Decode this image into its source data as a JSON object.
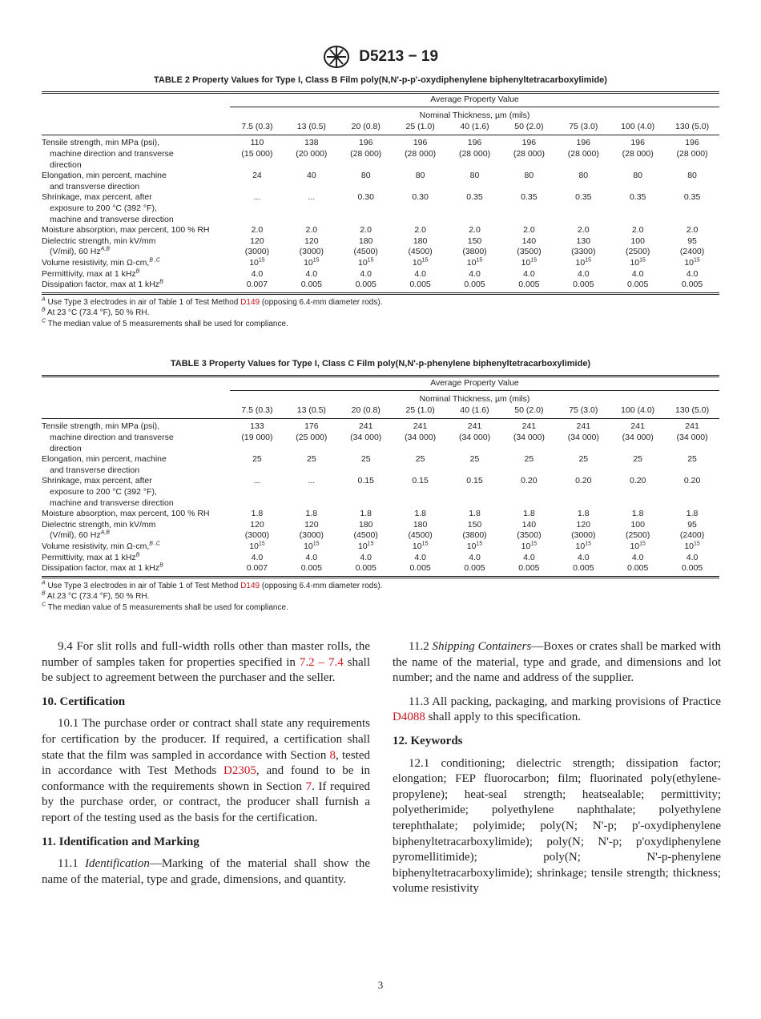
{
  "header": {
    "logo": "ASTM",
    "designation": "D5213 − 19"
  },
  "tables": [
    {
      "caption": "TABLE 2 Property Values for Type I, Class B Film poly(N,N'-p-p'-oxydiphenylene biphenyltetracarboxylimide)",
      "group_header": "Average Property Value",
      "sub_header": "Nominal Thickness, µm (mils)",
      "columns": [
        "7.5 (0.3)",
        "13 (0.5)",
        "20 (0.8)",
        "25 (1.0)",
        "40 (1.6)",
        "50 (2.0)",
        "75 (3.0)",
        "100 (4.0)",
        "130 (5.0)"
      ],
      "rows": [
        {
          "label": [
            {
              "t": "Tensile strength, min MPa (psi),"
            },
            {
              "t": "machine direction and transverse"
            },
            {
              "t": "direction"
            }
          ],
          "cells": [
            [
              "110",
              "(15 000)"
            ],
            [
              "138",
              "(20 000)"
            ],
            [
              "196",
              "(28 000)"
            ],
            [
              "196",
              "(28 000)"
            ],
            [
              "196",
              "(28 000)"
            ],
            [
              "196",
              "(28 000)"
            ],
            [
              "196",
              "(28 000)"
            ],
            [
              "196",
              "(28 000)"
            ],
            [
              "196",
              "(28 000)"
            ]
          ]
        },
        {
          "label": [
            {
              "t": "Elongation, min percent, machine"
            },
            {
              "t": "and transverse direction"
            }
          ],
          "cells": [
            [
              "24"
            ],
            [
              "40"
            ],
            [
              "80"
            ],
            [
              "80"
            ],
            [
              "80"
            ],
            [
              "80"
            ],
            [
              "80"
            ],
            [
              "80"
            ],
            [
              "80"
            ]
          ]
        },
        {
          "label": [
            {
              "t": "Shrinkage, max percent, after"
            },
            {
              "t": "exposure to 200 °C (392 °F),"
            },
            {
              "t": "machine and transverse direction"
            }
          ],
          "cells": [
            [
              "..."
            ],
            [
              "..."
            ],
            [
              "0.30"
            ],
            [
              "0.30"
            ],
            [
              "0.35"
            ],
            [
              "0.35"
            ],
            [
              "0.35"
            ],
            [
              "0.35"
            ],
            [
              "0.35"
            ]
          ]
        },
        {
          "label": [
            {
              "t": "Moisture absorption, max percent, 100 % RH"
            }
          ],
          "cells": [
            [
              "2.0"
            ],
            [
              "2.0"
            ],
            [
              "2.0"
            ],
            [
              "2.0"
            ],
            [
              "2.0"
            ],
            [
              "2.0"
            ],
            [
              "2.0"
            ],
            [
              "2.0"
            ],
            [
              "2.0"
            ]
          ]
        },
        {
          "label": [
            {
              "t": "Dielectric strength, min kV/mm"
            },
            {
              "t": "(V/mil), 60 Hz",
              "sup": "A,B"
            }
          ],
          "cells": [
            [
              "120",
              "(3000)"
            ],
            [
              "120",
              "(3000)"
            ],
            [
              "180",
              "(4500)"
            ],
            [
              "180",
              "(4500)"
            ],
            [
              "150",
              "(3800)"
            ],
            [
              "140",
              "(3500)"
            ],
            [
              "130",
              "(3300)"
            ],
            [
              "100",
              "(2500)"
            ],
            [
              "95",
              "(2400)"
            ]
          ]
        },
        {
          "label": [
            {
              "t": "Volume resistivity, min Ω-cm,",
              "sup": "B ,C"
            }
          ],
          "cells": [
            [
              "10^15"
            ],
            [
              "10^15"
            ],
            [
              "10^15"
            ],
            [
              "10^15"
            ],
            [
              "10^15"
            ],
            [
              "10^15"
            ],
            [
              "10^15"
            ],
            [
              "10^15"
            ],
            [
              "10^15"
            ]
          ]
        },
        {
          "label": [
            {
              "t": "Permittivity, max at 1 kHz",
              "sup": "B"
            }
          ],
          "cells": [
            [
              "4.0"
            ],
            [
              "4.0"
            ],
            [
              "4.0"
            ],
            [
              "4.0"
            ],
            [
              "4.0"
            ],
            [
              "4.0"
            ],
            [
              "4.0"
            ],
            [
              "4.0"
            ],
            [
              "4.0"
            ]
          ]
        },
        {
          "label": [
            {
              "t": "Dissipation factor, max at 1 kHz",
              "sup": "B"
            }
          ],
          "cells": [
            [
              "0.007"
            ],
            [
              "0.005"
            ],
            [
              "0.005"
            ],
            [
              "0.005"
            ],
            [
              "0.005"
            ],
            [
              "0.005"
            ],
            [
              "0.005"
            ],
            [
              "0.005"
            ],
            [
              "0.005"
            ]
          ]
        }
      ],
      "footnotes": [
        {
          "mark": "A",
          "parts": [
            {
              "t": "Use Type 3 electrodes in air of Table 1 of Test Method "
            },
            {
              "link": "D149"
            },
            {
              "t": " (opposing 6.4-mm diameter rods)."
            }
          ]
        },
        {
          "mark": "B",
          "parts": [
            {
              "t": "At 23 °C (73.4 °F), 50 % RH."
            }
          ]
        },
        {
          "mark": "C",
          "parts": [
            {
              "t": "The median value of 5 measurements shall be used for compliance."
            }
          ]
        }
      ]
    },
    {
      "caption": "TABLE 3 Property Values for Type I, Class C Film poly(N,N'-p-phenylene biphenyltetracarboxylimide)",
      "group_header": "Average Property Value",
      "sub_header": "Nominal Thickness, µm (mils)",
      "columns": [
        "7.5 (0.3)",
        "13 (0.5)",
        "20 (0.8)",
        "25 (1.0)",
        "40 (1.6)",
        "50 (2.0)",
        "75 (3.0)",
        "100 (4.0)",
        "130 (5.0)"
      ],
      "rows": [
        {
          "label": [
            {
              "t": "Tensile strength, min MPa (psi),"
            },
            {
              "t": "machine direction and transverse"
            },
            {
              "t": "direction"
            }
          ],
          "cells": [
            [
              "133",
              "(19 000)"
            ],
            [
              "176",
              "(25 000)"
            ],
            [
              "241",
              "(34 000)"
            ],
            [
              "241",
              "(34 000)"
            ],
            [
              "241",
              "(34 000)"
            ],
            [
              "241",
              "(34 000)"
            ],
            [
              "241",
              "(34 000)"
            ],
            [
              "241",
              "(34 000)"
            ],
            [
              "241",
              "(34 000)"
            ]
          ]
        },
        {
          "label": [
            {
              "t": "Elongation, min percent, machine"
            },
            {
              "t": "and transverse direction"
            }
          ],
          "cells": [
            [
              "25"
            ],
            [
              "25"
            ],
            [
              "25"
            ],
            [
              "25"
            ],
            [
              "25"
            ],
            [
              "25"
            ],
            [
              "25"
            ],
            [
              "25"
            ],
            [
              "25"
            ]
          ]
        },
        {
          "label": [
            {
              "t": "Shrinkage, max percent, after"
            },
            {
              "t": "exposure to 200 °C (392 °F),"
            },
            {
              "t": "machine and transverse direction"
            }
          ],
          "cells": [
            [
              "..."
            ],
            [
              "..."
            ],
            [
              "0.15"
            ],
            [
              "0.15"
            ],
            [
              "0.15"
            ],
            [
              "0.20"
            ],
            [
              "0.20"
            ],
            [
              "0.20"
            ],
            [
              "0.20"
            ]
          ]
        },
        {
          "label": [
            {
              "t": "Moisture absorption, max percent, 100 % RH"
            }
          ],
          "cells": [
            [
              "1.8"
            ],
            [
              "1.8"
            ],
            [
              "1.8"
            ],
            [
              "1.8"
            ],
            [
              "1.8"
            ],
            [
              "1.8"
            ],
            [
              "1.8"
            ],
            [
              "1.8"
            ],
            [
              "1.8"
            ]
          ]
        },
        {
          "label": [
            {
              "t": "Dielectric strength, min kV/mm"
            },
            {
              "t": "(V/mil), 60 Hz",
              "sup": "A,B"
            }
          ],
          "cells": [
            [
              "120",
              "(3000)"
            ],
            [
              "120",
              "(3000)"
            ],
            [
              "180",
              "(4500)"
            ],
            [
              "180",
              "(4500)"
            ],
            [
              "150",
              "(3800)"
            ],
            [
              "140",
              "(3500)"
            ],
            [
              "120",
              "(3000)"
            ],
            [
              "100",
              "(2500)"
            ],
            [
              "95",
              "(2400)"
            ]
          ]
        },
        {
          "label": [
            {
              "t": "Volume resistivity, min Ω-cm,",
              "sup": "B ,C"
            }
          ],
          "cells": [
            [
              "10^15"
            ],
            [
              "10^15"
            ],
            [
              "10^15"
            ],
            [
              "10^15"
            ],
            [
              "10^15"
            ],
            [
              "10^15"
            ],
            [
              "10^15"
            ],
            [
              "10^15"
            ],
            [
              "10^15"
            ]
          ]
        },
        {
          "label": [
            {
              "t": "Permittivity, max at 1 kHz",
              "sup": "B"
            }
          ],
          "cells": [
            [
              "4.0"
            ],
            [
              "4.0"
            ],
            [
              "4.0"
            ],
            [
              "4.0"
            ],
            [
              "4.0"
            ],
            [
              "4.0"
            ],
            [
              "4.0"
            ],
            [
              "4.0"
            ],
            [
              "4.0"
            ]
          ]
        },
        {
          "label": [
            {
              "t": "Dissipation factor, max at 1 kHz",
              "sup": "B"
            }
          ],
          "cells": [
            [
              "0.007"
            ],
            [
              "0.005"
            ],
            [
              "0.005"
            ],
            [
              "0.005"
            ],
            [
              "0.005"
            ],
            [
              "0.005"
            ],
            [
              "0.005"
            ],
            [
              "0.005"
            ],
            [
              "0.005"
            ]
          ]
        }
      ],
      "footnotes": [
        {
          "mark": "A",
          "parts": [
            {
              "t": "Use Type 3 electrodes in air of Table 1 of Test Method "
            },
            {
              "link": "D149"
            },
            {
              "t": " (opposing 6.4-mm diameter rods)."
            }
          ]
        },
        {
          "mark": "B",
          "parts": [
            {
              "t": "At 23 °C (73.4 °F), 50 % RH."
            }
          ]
        },
        {
          "mark": "C",
          "parts": [
            {
              "t": "The median value of 5 measurements shall be used for compliance."
            }
          ]
        }
      ]
    }
  ],
  "columns": [
    [
      {
        "type": "p",
        "parts": [
          {
            "t": "9.4 For slit rolls and full-width rolls other than master rolls, the number of samples taken for properties specified in "
          },
          {
            "link": "7.2 – 7.4"
          },
          {
            "t": " shall be subject to agreement between the purchaser and the seller."
          }
        ]
      },
      {
        "type": "h",
        "parts": [
          {
            "t": "10. Certification"
          }
        ]
      },
      {
        "type": "p",
        "parts": [
          {
            "t": "10.1 The purchase order or contract shall state any requirements for certification by the producer. If required, a certification shall state that the film was sampled in accordance with Section "
          },
          {
            "link": "8"
          },
          {
            "t": ", tested in accordance with Test Methods "
          },
          {
            "link": "D2305"
          },
          {
            "t": ", and found to be in conformance with the requirements shown in Section "
          },
          {
            "link": "7"
          },
          {
            "t": ". If required by the purchase order, or contract, the producer shall furnish a report of the testing used as the basis for the certification."
          }
        ]
      },
      {
        "type": "h",
        "parts": [
          {
            "t": "11. Identification and Marking"
          }
        ]
      },
      {
        "type": "p",
        "parts": [
          {
            "t": "11.1 "
          },
          {
            "i": "Identification"
          },
          {
            "t": "—Marking of the material shall show the name of the material, type and grade, dimensions, and quantity."
          }
        ]
      }
    ],
    [
      {
        "type": "p",
        "parts": [
          {
            "t": "11.2 "
          },
          {
            "i": "Shipping Containers"
          },
          {
            "t": "—Boxes or crates shall be marked with the name of the material, type and grade, and dimensions and lot number; and the name and address of the supplier."
          }
        ]
      },
      {
        "type": "p",
        "parts": [
          {
            "t": "11.3 All packing, packaging, and marking provisions of Practice "
          },
          {
            "link": "D4088"
          },
          {
            "t": " shall apply to this specification."
          }
        ]
      },
      {
        "type": "h",
        "parts": [
          {
            "t": "12. Keywords"
          }
        ]
      },
      {
        "type": "p",
        "parts": [
          {
            "t": "12.1 conditioning; dielectric strength; dissipation factor; elongation; FEP fluorocarbon; film; fluorinated poly(ethylene-propylene); heat-seal strength; heatsealable; permittivity; polyetherimide; polyethylene naphthalate; polyethylene terephthalate; polyimide; poly(N; N'-p; p'-oxydiphenylene biphenyltetracarboxylimide); poly(N; N'-p; p'oxydiphenylene pyromellitimide); poly(N; N'-p-phenylene biphenyltetracarboxylimide); shrinkage; tensile strength; thickness; volume resistivity"
          }
        ]
      }
    ]
  ],
  "page_number": "3",
  "colors": {
    "text": "#231f20",
    "link": "#c4161c"
  }
}
